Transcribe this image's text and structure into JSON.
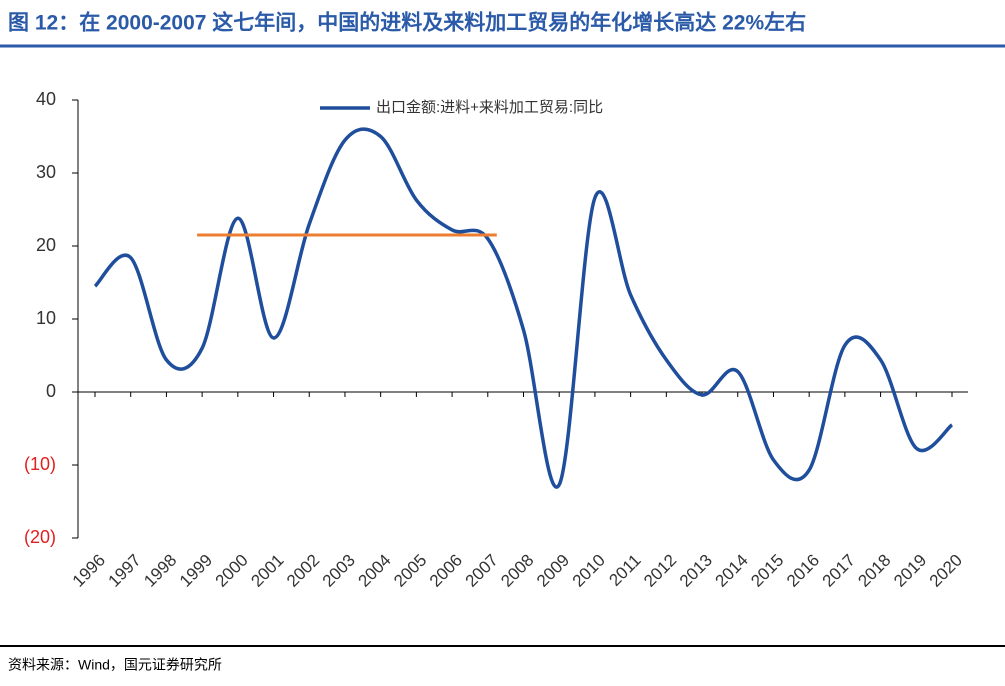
{
  "title": "图 12：在 2000-2007 这七年间，中国的进料及来料加工贸易的年化增长高达 22%左右",
  "source": "资料来源：Wind，国元证券研究所",
  "chart_data": {
    "type": "line",
    "categories": [
      "1996",
      "1997",
      "1998",
      "1999",
      "2000",
      "2001",
      "2002",
      "2003",
      "2004",
      "2005",
      "2006",
      "2007",
      "2008",
      "2009",
      "2010",
      "2011",
      "2012",
      "2013",
      "2014",
      "2015",
      "2016",
      "2017",
      "2018",
      "2019",
      "2020"
    ],
    "series": [
      {
        "name": "出口金额:进料+来料加工贸易:同比",
        "color": "#1f4e9c",
        "values": [
          14.5,
          18.4,
          4.4,
          6,
          23.8,
          7.4,
          23,
          34.5,
          35,
          26.3,
          22.2,
          21,
          8.5,
          -12.7,
          26.6,
          13.3,
          4.4,
          -0.4,
          2.8,
          -9.3,
          -10.7,
          6.4,
          4.4,
          -7.7,
          -4.5
        ]
      }
    ],
    "reference_line": {
      "from": "1999",
      "to": "2007",
      "value": 21.5,
      "color": "#ed7d31"
    },
    "ylim": [
      -20,
      40
    ],
    "yticks": [
      40,
      30,
      20,
      10,
      0,
      {
        "value": -10,
        "label": "(10)"
      },
      {
        "value": -20,
        "label": "(20)"
      }
    ],
    "negative_tick_color": "#e02020",
    "legend": "top"
  }
}
